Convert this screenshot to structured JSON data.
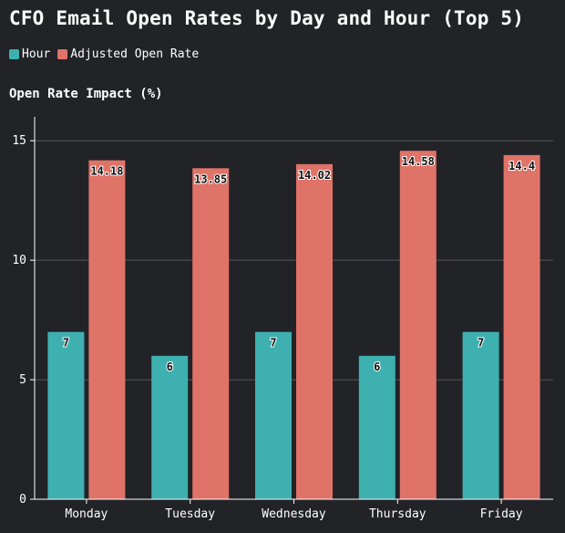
{
  "chart_data": {
    "type": "bar",
    "title": "CFO Email Open Rates by Day and Hour (Top 5)",
    "ylabel": "Open Rate Impact (%)",
    "xlabel": "",
    "categories": [
      "Monday",
      "Tuesday",
      "Wednesday",
      "Thursday",
      "Friday"
    ],
    "series": [
      {
        "name": "Hour",
        "color": "#3eb0b0",
        "values": [
          7,
          6,
          7,
          6,
          7
        ]
      },
      {
        "name": "Adjusted Open Rate",
        "color": "#e07368",
        "values": [
          14.18,
          13.85,
          14.02,
          14.58,
          14.4
        ]
      }
    ],
    "ylim": [
      0,
      16
    ],
    "yticks": [
      0,
      5,
      10,
      15
    ],
    "grid": true,
    "legend_position": "top-left",
    "background": "#222327"
  }
}
